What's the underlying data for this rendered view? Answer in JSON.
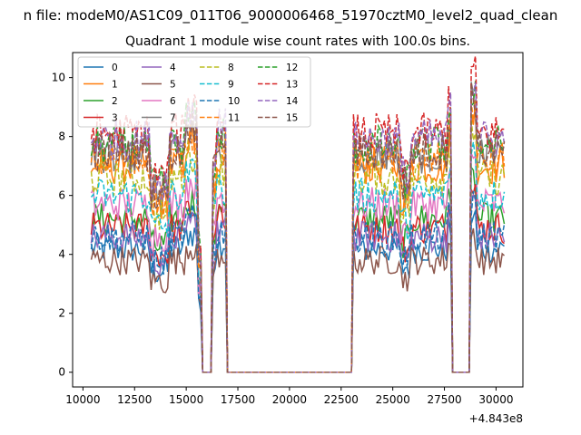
{
  "chart_data": {
    "type": "line",
    "suptitle": "n file: modeM0/AS1C09_011T06_9000006468_51970cztM0_level2_quad_clean",
    "title": "Quadrant 1 module wise count rates with 100.0s bins.",
    "xlabel": "",
    "ylabel": "",
    "x_offset_label": "+4.843e8",
    "xlim": [
      9500,
      31300
    ],
    "ylim": [
      -0.5,
      10.85
    ],
    "xticks": [
      "10000",
      "12500",
      "15000",
      "17500",
      "20000",
      "22500",
      "25000",
      "27500",
      "30000"
    ],
    "yticks": [
      "0",
      "2",
      "4",
      "6",
      "8",
      "10"
    ],
    "x_start": 10400,
    "x_step": 100,
    "n_points": 201,
    "grid": false,
    "legend_position": "top-left",
    "series": [
      {
        "name": "0",
        "color": "#1f77b4",
        "dash": "solid",
        "base": 4.2
      },
      {
        "name": "1",
        "color": "#ff7f0e",
        "dash": "solid",
        "base": 7.0
      },
      {
        "name": "2",
        "color": "#2ca02c",
        "dash": "solid",
        "base": 5.2
      },
      {
        "name": "3",
        "color": "#d62728",
        "dash": "solid",
        "base": 4.9
      },
      {
        "name": "4",
        "color": "#9467bd",
        "dash": "solid",
        "base": 4.6
      },
      {
        "name": "5",
        "color": "#8c564b",
        "dash": "solid",
        "base": 3.8
      },
      {
        "name": "6",
        "color": "#e377c2",
        "dash": "solid",
        "base": 5.7
      },
      {
        "name": "7",
        "color": "#7f7f7f",
        "dash": "solid",
        "base": 7.4
      },
      {
        "name": "8",
        "color": "#bcbd22",
        "dash": "dashed",
        "base": 6.6
      },
      {
        "name": "9",
        "color": "#17becf",
        "dash": "dashed",
        "base": 6.0
      },
      {
        "name": "10",
        "color": "#1f77b4",
        "dash": "dashed",
        "base": 4.6
      },
      {
        "name": "11",
        "color": "#ff7f0e",
        "dash": "dashed",
        "base": 7.2
      },
      {
        "name": "12",
        "color": "#2ca02c",
        "dash": "dashed",
        "base": 7.7
      },
      {
        "name": "13",
        "color": "#d62728",
        "dash": "dashed",
        "base": 8.1
      },
      {
        "name": "14",
        "color": "#9467bd",
        "dash": "dashed",
        "base": 7.9
      },
      {
        "name": "15",
        "color": "#8c564b",
        "dash": "dashed",
        "base": 7.5
      }
    ],
    "zero_intervals": [
      [
        15800,
        16200
      ],
      [
        17000,
        23000
      ],
      [
        27900,
        28700
      ]
    ],
    "notes": "Per-module count rates fluctuate around each base level; rates drop to ~0 in the listed intervals."
  }
}
